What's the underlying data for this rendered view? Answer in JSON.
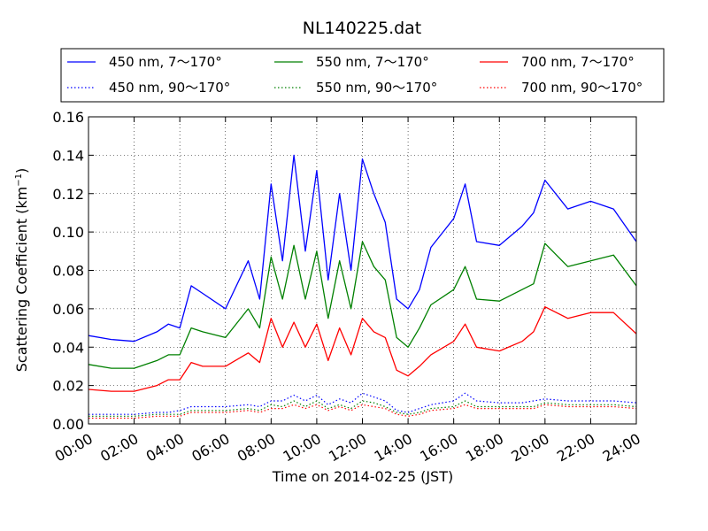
{
  "chart_data": {
    "type": "line",
    "title": "NL140225.dat",
    "xlabel": "Time on 2014-02-25 (JST)",
    "ylabel_main": "Scattering Coefficient (km",
    "ylabel_exp": "−1",
    "ylabel_close": ")",
    "xlim": [
      0,
      24
    ],
    "ylim": [
      0,
      0.16
    ],
    "x_ticks": [
      0,
      2,
      4,
      6,
      8,
      10,
      12,
      14,
      16,
      18,
      20,
      22,
      24
    ],
    "x_tick_labels": [
      "00:00",
      "02:00",
      "04:00",
      "06:00",
      "08:00",
      "10:00",
      "12:00",
      "14:00",
      "16:00",
      "18:00",
      "20:00",
      "22:00",
      "24:00"
    ],
    "y_ticks": [
      0,
      0.02,
      0.04,
      0.06,
      0.08,
      0.1,
      0.12,
      0.14,
      0.16
    ],
    "y_tick_labels": [
      "0.00",
      "0.02",
      "0.04",
      "0.06",
      "0.08",
      "0.10",
      "0.12",
      "0.14",
      "0.16"
    ],
    "grid": true,
    "legend_position": "top, above plot, 3 columns",
    "x": [
      0,
      1,
      2,
      3,
      3.5,
      4,
      4.5,
      5,
      6,
      7,
      7.5,
      8,
      8.5,
      9,
      9.5,
      10,
      10.5,
      11,
      11.5,
      12,
      12.5,
      13,
      13.5,
      14,
      14.5,
      15,
      16,
      16.5,
      17,
      18,
      19,
      19.5,
      20,
      21,
      22,
      23,
      24
    ],
    "series": [
      {
        "name": "450 nm, 7～170°",
        "color": "#0000ff",
        "style": "solid",
        "values": [
          0.046,
          0.044,
          0.043,
          0.048,
          0.052,
          0.05,
          0.072,
          0.068,
          0.06,
          0.085,
          0.065,
          0.125,
          0.085,
          0.14,
          0.09,
          0.132,
          0.075,
          0.12,
          0.08,
          0.138,
          0.12,
          0.105,
          0.065,
          0.06,
          0.07,
          0.092,
          0.107,
          0.125,
          0.095,
          0.093,
          0.103,
          0.11,
          0.127,
          0.112,
          0.116,
          0.112,
          0.095
        ]
      },
      {
        "name": "450 nm, 90～170°",
        "color": "#0000ff",
        "style": "dotted",
        "values": [
          0.005,
          0.005,
          0.005,
          0.006,
          0.006,
          0.007,
          0.009,
          0.009,
          0.009,
          0.01,
          0.009,
          0.012,
          0.012,
          0.015,
          0.012,
          0.015,
          0.01,
          0.013,
          0.011,
          0.016,
          0.014,
          0.012,
          0.007,
          0.006,
          0.008,
          0.01,
          0.012,
          0.016,
          0.012,
          0.011,
          0.011,
          0.012,
          0.013,
          0.012,
          0.012,
          0.012,
          0.011
        ]
      },
      {
        "name": "550 nm, 7～170°",
        "color": "#008000",
        "style": "solid",
        "values": [
          0.031,
          0.029,
          0.029,
          0.033,
          0.036,
          0.036,
          0.05,
          0.048,
          0.045,
          0.06,
          0.05,
          0.087,
          0.065,
          0.093,
          0.065,
          0.09,
          0.055,
          0.085,
          0.06,
          0.095,
          0.082,
          0.075,
          0.045,
          0.04,
          0.05,
          0.062,
          0.07,
          0.082,
          0.065,
          0.064,
          0.07,
          0.073,
          0.094,
          0.082,
          0.085,
          0.088,
          0.072
        ]
      },
      {
        "name": "550 nm, 90～170°",
        "color": "#008000",
        "style": "dotted",
        "values": [
          0.004,
          0.004,
          0.004,
          0.005,
          0.005,
          0.005,
          0.007,
          0.007,
          0.007,
          0.008,
          0.007,
          0.01,
          0.009,
          0.012,
          0.009,
          0.012,
          0.008,
          0.01,
          0.008,
          0.012,
          0.011,
          0.009,
          0.006,
          0.005,
          0.006,
          0.008,
          0.009,
          0.012,
          0.009,
          0.009,
          0.009,
          0.009,
          0.011,
          0.01,
          0.01,
          0.01,
          0.009
        ]
      },
      {
        "name": "700 nm, 7～170°",
        "color": "#ff0000",
        "style": "solid",
        "values": [
          0.018,
          0.017,
          0.017,
          0.02,
          0.023,
          0.023,
          0.032,
          0.03,
          0.03,
          0.037,
          0.032,
          0.055,
          0.04,
          0.053,
          0.04,
          0.052,
          0.033,
          0.05,
          0.036,
          0.055,
          0.048,
          0.045,
          0.028,
          0.025,
          0.03,
          0.036,
          0.043,
          0.052,
          0.04,
          0.038,
          0.043,
          0.048,
          0.061,
          0.055,
          0.058,
          0.058,
          0.047
        ]
      },
      {
        "name": "700 nm, 90～170°",
        "color": "#ff0000",
        "style": "dotted",
        "values": [
          0.003,
          0.003,
          0.003,
          0.004,
          0.004,
          0.004,
          0.006,
          0.006,
          0.006,
          0.007,
          0.006,
          0.008,
          0.008,
          0.01,
          0.008,
          0.01,
          0.007,
          0.009,
          0.007,
          0.01,
          0.009,
          0.008,
          0.005,
          0.004,
          0.005,
          0.007,
          0.008,
          0.01,
          0.008,
          0.008,
          0.008,
          0.008,
          0.01,
          0.009,
          0.009,
          0.009,
          0.008
        ]
      }
    ]
  }
}
